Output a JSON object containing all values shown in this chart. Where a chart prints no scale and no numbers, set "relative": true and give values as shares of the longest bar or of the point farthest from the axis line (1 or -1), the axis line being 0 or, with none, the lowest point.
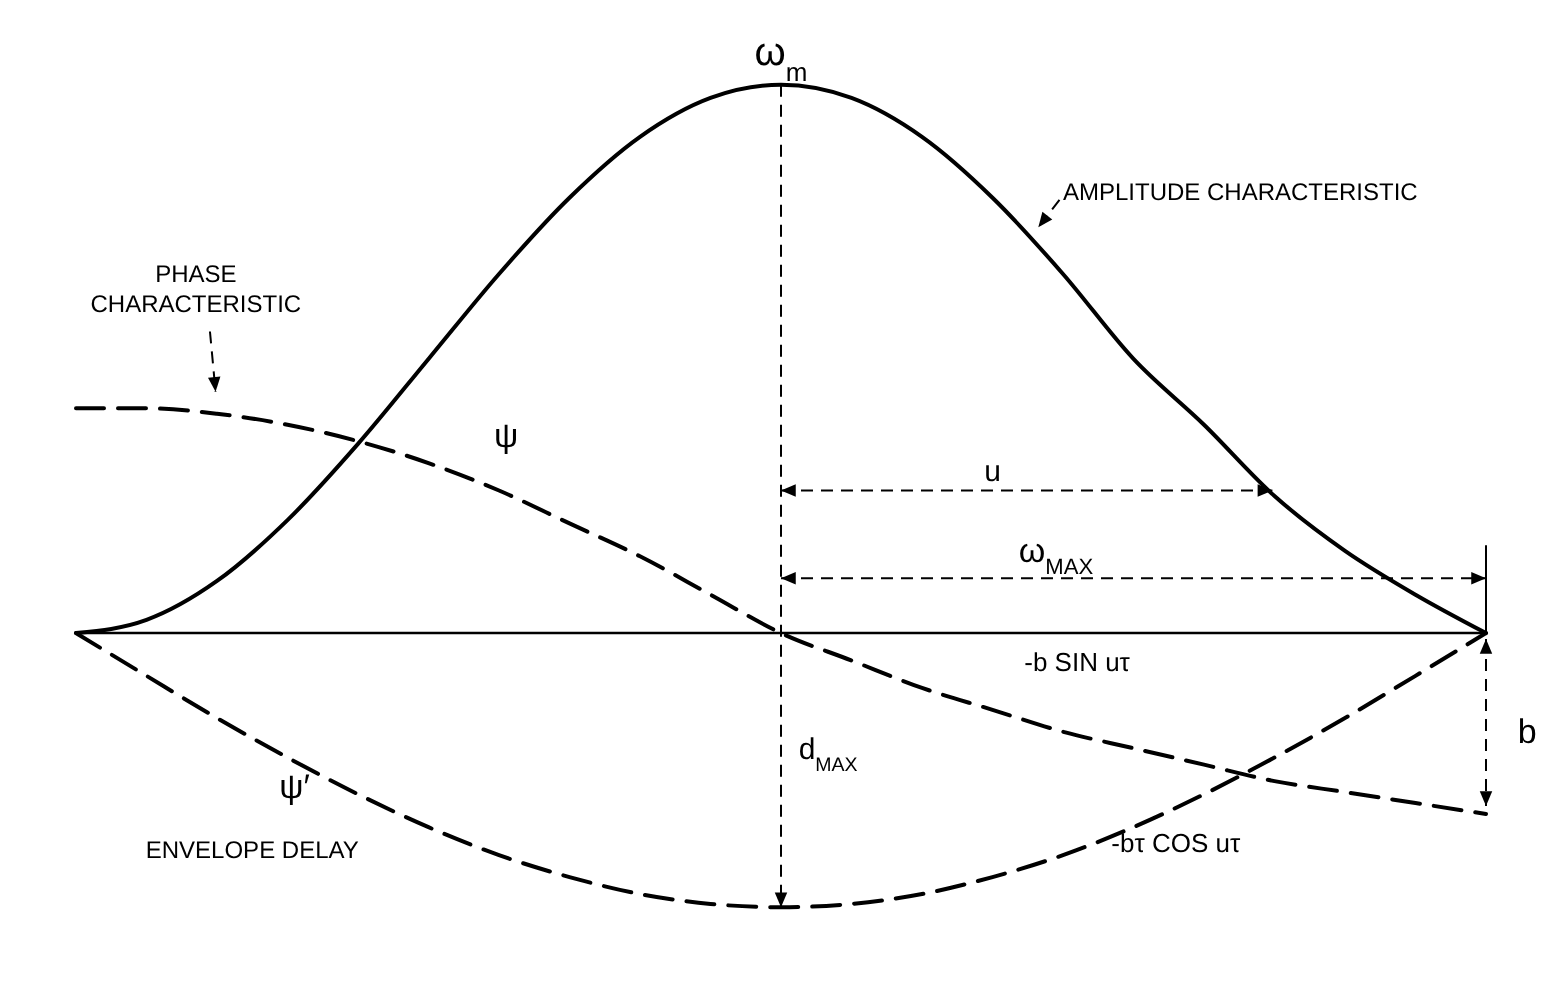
{
  "chart_data": {
    "type": "line",
    "relative": true,
    "marker": "none",
    "categories": [
      null,
      null,
      null,
      null,
      null,
      null,
      null,
      null,
      null,
      null,
      null,
      null,
      null,
      null,
      null,
      null,
      null,
      null,
      null,
      null,
      null
    ],
    "series": [
      {
        "name": "AMPLITUDE CHARACTERISTIC",
        "color": "#000000",
        "line_style": "solid",
        "values": [
          0,
          0.024,
          0.095,
          0.206,
          0.345,
          0.5,
          0.655,
          0.794,
          0.905,
          0.976,
          1,
          0.976,
          0.905,
          0.794,
          0.655,
          0.5,
          0.38,
          0.25,
          0.15,
          0.07,
          0
        ]
      },
      {
        "name": "PHASE CHARACTERISTIC",
        "color": "#000000",
        "line_style": "dashed",
        "values": [
          0.41,
          0.41,
          0.4,
          0.38,
          0.35,
          0.31,
          0.26,
          0.2,
          0.14,
          0.07,
          0,
          -0.05,
          -0.1,
          -0.14,
          -0.18,
          -0.21,
          -0.24,
          -0.27,
          -0.29,
          -0.31,
          -0.33
        ]
      },
      {
        "name": "ENVELOPE DELAY",
        "color": "#000000",
        "line_style": "dashed",
        "values": [
          0,
          -0.078,
          -0.155,
          -0.227,
          -0.294,
          -0.354,
          -0.405,
          -0.445,
          -0.476,
          -0.494,
          -0.5,
          -0.494,
          -0.476,
          -0.445,
          -0.405,
          -0.354,
          -0.294,
          -0.227,
          -0.155,
          -0.078,
          0
        ]
      }
    ],
    "annotations": [
      "ω$_{m}$",
      "ψ",
      "ψ′",
      "u",
      "ω$_{MAX}$",
      "-b SIN uτ",
      "-bτ COS uτ",
      "b",
      "d$_{MAX}$"
    ]
  }
}
